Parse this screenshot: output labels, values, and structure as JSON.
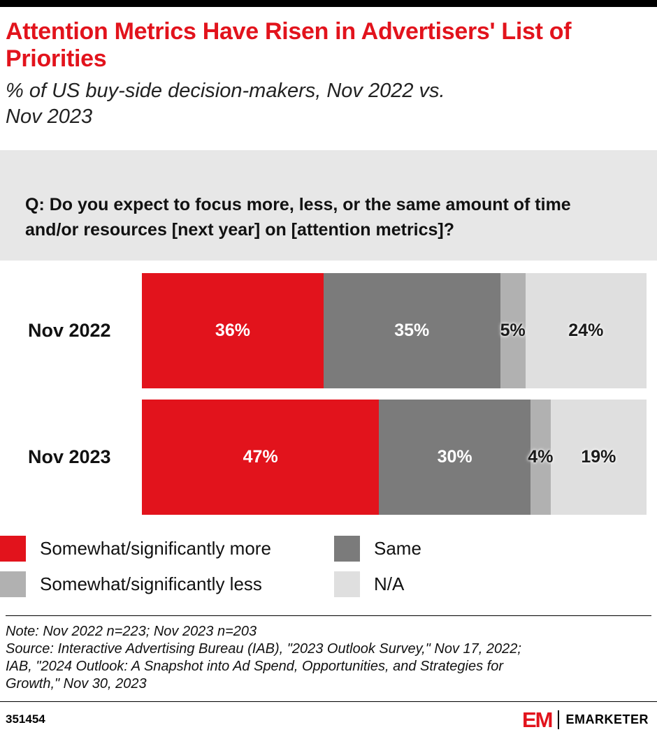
{
  "colors": {
    "accent": "#e2131c",
    "question_bg": "#e7e7e7",
    "text": "#111111"
  },
  "header": {
    "title": "Attention Metrics Have Risen in Advertisers' List of\nPriorities",
    "subtitle": "% of US buy-side decision-makers, Nov 2022 vs.\nNov 2023"
  },
  "question": "Q: Do you expect to focus more, less, or the same amount of time\nand/or resources [next year] on [attention metrics]?",
  "chart_data": {
    "type": "bar",
    "orientation": "horizontal",
    "stacked": true,
    "title": "Attention Metrics Have Risen in Advertisers' List of Priorities",
    "categories": [
      "Nov 2022",
      "Nov 2023"
    ],
    "series": [
      {
        "name": "Somewhat/significantly more",
        "color": "#e2131c",
        "label_color": "#ffffff",
        "values": [
          36,
          47
        ]
      },
      {
        "name": "Same",
        "color": "#7b7b7b",
        "label_color": "#ffffff",
        "values": [
          35,
          30
        ]
      },
      {
        "name": "Somewhat/significantly less",
        "color": "#b1b1b1",
        "label_color": "#1a1a1a",
        "values": [
          5,
          4
        ]
      },
      {
        "name": "N/A",
        "color": "#dfdfdf",
        "label_color": "#1a1a1a",
        "values": [
          24,
          19
        ]
      }
    ],
    "value_suffix": "%",
    "xlim": [
      0,
      100
    ],
    "legend_position": "bottom",
    "grid": false
  },
  "footnote": {
    "note": "Note: Nov 2022 n=223; Nov 2023 n=203",
    "source": "Source: Interactive Advertising Bureau (IAB), \"2023 Outlook Survey,\" Nov 17, 2022;\nIAB, \"2024 Outlook: A Snapshot into Ad Spend, Opportunities, and Strategies for\nGrowth,\" Nov 30, 2023"
  },
  "footer": {
    "chart_id": "351454",
    "logo_mark": "EM",
    "brand": "EMARKETER"
  }
}
